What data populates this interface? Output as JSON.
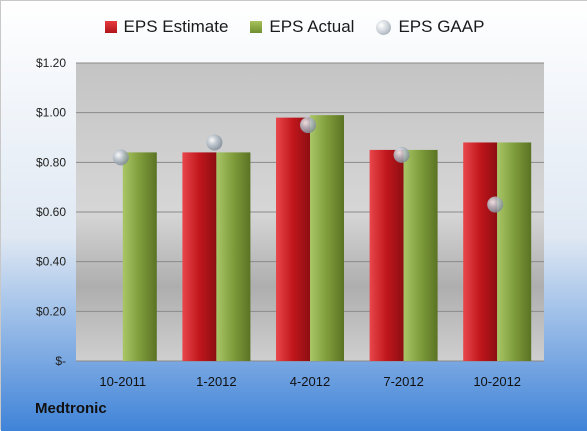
{
  "company": "Medtronic",
  "legend": {
    "estimate": "EPS Estimate",
    "actual": "EPS Actual",
    "gaap": "EPS GAAP"
  },
  "colors": {
    "estimate": "#c0161c",
    "actual": "#7f9c3b",
    "gaap": "#b9c2cc",
    "background_top": "#ffffff",
    "background_bottom": "#3f83d8",
    "plot_area": "#c8c8c8"
  },
  "chart_data": {
    "type": "bar",
    "categories": [
      "10-2011",
      "1-2012",
      "4-2012",
      "7-2012",
      "10-2012"
    ],
    "series": [
      {
        "name": "EPS Estimate",
        "type": "bar",
        "values": [
          null,
          0.84,
          0.98,
          0.85,
          0.88
        ]
      },
      {
        "name": "EPS Actual",
        "type": "bar",
        "values": [
          0.84,
          0.84,
          0.99,
          0.85,
          0.88
        ]
      },
      {
        "name": "EPS GAAP",
        "type": "scatter",
        "values": [
          0.82,
          0.88,
          0.95,
          0.83,
          0.63
        ]
      }
    ],
    "yticks": [
      "$-",
      "$0.20",
      "$0.40",
      "$0.60",
      "$0.80",
      "$1.00",
      "$1.20"
    ],
    "ylim": [
      0,
      1.2
    ],
    "grid": true,
    "legend_position": "top"
  }
}
